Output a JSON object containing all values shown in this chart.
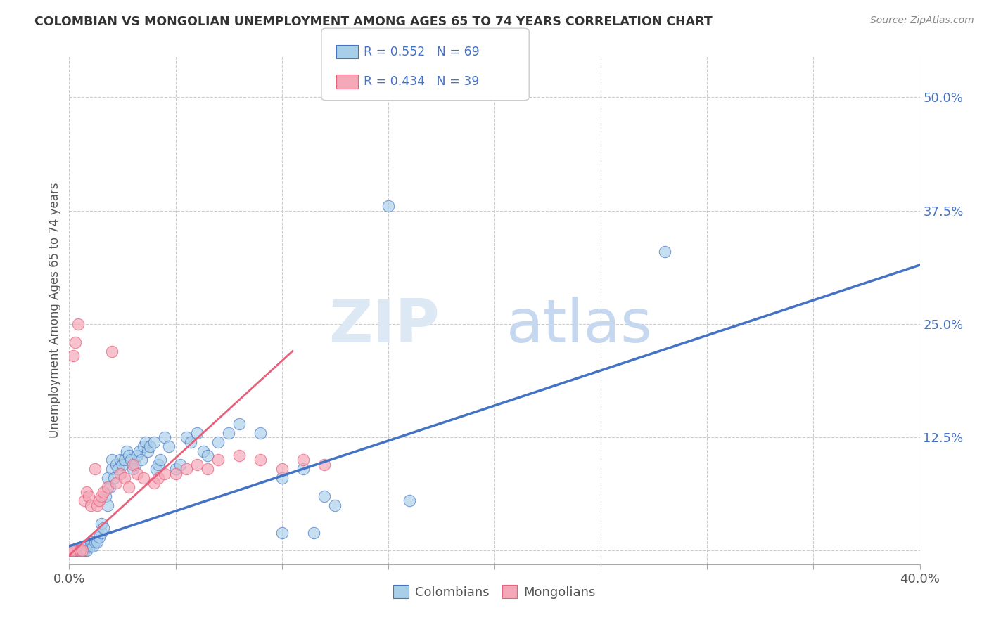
{
  "title": "COLOMBIAN VS MONGOLIAN UNEMPLOYMENT AMONG AGES 65 TO 74 YEARS CORRELATION CHART",
  "source": "Source: ZipAtlas.com",
  "ylabel": "Unemployment Among Ages 65 to 74 years",
  "xlim": [
    0.0,
    0.4
  ],
  "ylim": [
    -0.015,
    0.545
  ],
  "xticks": [
    0.0,
    0.05,
    0.1,
    0.15,
    0.2,
    0.25,
    0.3,
    0.35,
    0.4
  ],
  "xticklabels": [
    "0.0%",
    "",
    "",
    "",
    "",
    "",
    "",
    "",
    "40.0%"
  ],
  "ytick_positions": [
    0.0,
    0.125,
    0.25,
    0.375,
    0.5
  ],
  "yticklabels": [
    "",
    "12.5%",
    "25.0%",
    "37.5%",
    "50.0%"
  ],
  "R_colombian": 0.552,
  "N_colombian": 69,
  "R_mongolian": 0.434,
  "N_mongolian": 39,
  "colombian_color": "#a8cfe8",
  "mongolian_color": "#f4a8b8",
  "trend_colombian_color": "#4472c4",
  "trend_mongolian_color": "#e8607a",
  "background_color": "#ffffff",
  "grid_color": "#cccccc",
  "legend_color": "#4472c4",
  "colombians_scatter": [
    [
      0.0,
      0.0
    ],
    [
      0.001,
      0.0
    ],
    [
      0.002,
      0.0
    ],
    [
      0.003,
      0.0
    ],
    [
      0.004,
      0.0
    ],
    [
      0.005,
      0.0
    ],
    [
      0.006,
      0.0
    ],
    [
      0.007,
      0.0
    ],
    [
      0.008,
      0.0
    ],
    [
      0.009,
      0.005
    ],
    [
      0.01,
      0.005
    ],
    [
      0.01,
      0.01
    ],
    [
      0.011,
      0.005
    ],
    [
      0.012,
      0.01
    ],
    [
      0.013,
      0.01
    ],
    [
      0.014,
      0.015
    ],
    [
      0.015,
      0.02
    ],
    [
      0.015,
      0.03
    ],
    [
      0.016,
      0.025
    ],
    [
      0.017,
      0.06
    ],
    [
      0.018,
      0.05
    ],
    [
      0.018,
      0.08
    ],
    [
      0.019,
      0.07
    ],
    [
      0.02,
      0.09
    ],
    [
      0.02,
      0.1
    ],
    [
      0.021,
      0.08
    ],
    [
      0.022,
      0.095
    ],
    [
      0.023,
      0.09
    ],
    [
      0.024,
      0.1
    ],
    [
      0.025,
      0.095
    ],
    [
      0.026,
      0.1
    ],
    [
      0.027,
      0.11
    ],
    [
      0.028,
      0.105
    ],
    [
      0.029,
      0.1
    ],
    [
      0.03,
      0.09
    ],
    [
      0.031,
      0.095
    ],
    [
      0.032,
      0.105
    ],
    [
      0.033,
      0.11
    ],
    [
      0.034,
      0.1
    ],
    [
      0.035,
      0.115
    ],
    [
      0.036,
      0.12
    ],
    [
      0.037,
      0.11
    ],
    [
      0.038,
      0.115
    ],
    [
      0.04,
      0.12
    ],
    [
      0.041,
      0.09
    ],
    [
      0.042,
      0.095
    ],
    [
      0.043,
      0.1
    ],
    [
      0.045,
      0.125
    ],
    [
      0.047,
      0.115
    ],
    [
      0.05,
      0.09
    ],
    [
      0.052,
      0.095
    ],
    [
      0.055,
      0.125
    ],
    [
      0.057,
      0.12
    ],
    [
      0.06,
      0.13
    ],
    [
      0.063,
      0.11
    ],
    [
      0.065,
      0.105
    ],
    [
      0.07,
      0.12
    ],
    [
      0.075,
      0.13
    ],
    [
      0.08,
      0.14
    ],
    [
      0.09,
      0.13
    ],
    [
      0.1,
      0.08
    ],
    [
      0.11,
      0.09
    ],
    [
      0.12,
      0.06
    ],
    [
      0.125,
      0.05
    ],
    [
      0.15,
      0.38
    ],
    [
      0.16,
      0.055
    ],
    [
      0.28,
      0.33
    ],
    [
      0.1,
      0.02
    ],
    [
      0.115,
      0.02
    ]
  ],
  "mongolians_scatter": [
    [
      0.0,
      0.0
    ],
    [
      0.001,
      0.0
    ],
    [
      0.002,
      0.0
    ],
    [
      0.002,
      0.215
    ],
    [
      0.003,
      0.23
    ],
    [
      0.004,
      0.25
    ],
    [
      0.005,
      0.0
    ],
    [
      0.006,
      0.0
    ],
    [
      0.007,
      0.055
    ],
    [
      0.008,
      0.065
    ],
    [
      0.009,
      0.06
    ],
    [
      0.01,
      0.05
    ],
    [
      0.012,
      0.09
    ],
    [
      0.013,
      0.05
    ],
    [
      0.014,
      0.055
    ],
    [
      0.015,
      0.06
    ],
    [
      0.016,
      0.065
    ],
    [
      0.018,
      0.07
    ],
    [
      0.02,
      0.22
    ],
    [
      0.022,
      0.075
    ],
    [
      0.024,
      0.085
    ],
    [
      0.026,
      0.08
    ],
    [
      0.028,
      0.07
    ],
    [
      0.03,
      0.095
    ],
    [
      0.032,
      0.085
    ],
    [
      0.035,
      0.08
    ],
    [
      0.04,
      0.075
    ],
    [
      0.042,
      0.08
    ],
    [
      0.045,
      0.085
    ],
    [
      0.05,
      0.085
    ],
    [
      0.055,
      0.09
    ],
    [
      0.06,
      0.095
    ],
    [
      0.065,
      0.09
    ],
    [
      0.07,
      0.1
    ],
    [
      0.08,
      0.105
    ],
    [
      0.09,
      0.1
    ],
    [
      0.1,
      0.09
    ],
    [
      0.11,
      0.1
    ],
    [
      0.12,
      0.095
    ]
  ],
  "colombian_trend_x": [
    0.0,
    0.4
  ],
  "colombian_trend_y": [
    0.005,
    0.315
  ],
  "mongolian_trend_x": [
    0.0,
    0.105
  ],
  "mongolian_trend_y": [
    -0.005,
    0.22
  ]
}
